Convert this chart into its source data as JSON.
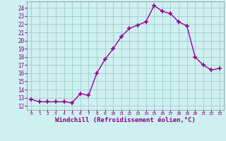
{
  "x": [
    0,
    1,
    2,
    3,
    4,
    5,
    6,
    7,
    8,
    9,
    10,
    11,
    12,
    13,
    14,
    15,
    16,
    17,
    18,
    19,
    20,
    21,
    22,
    23
  ],
  "y": [
    12.8,
    12.5,
    12.5,
    12.5,
    12.5,
    12.4,
    13.5,
    13.3,
    16.0,
    17.7,
    19.0,
    20.5,
    21.5,
    21.9,
    22.3,
    24.3,
    23.6,
    23.3,
    22.3,
    21.8,
    18.0,
    17.0,
    16.4,
    16.6
  ],
  "line_color": "#990099",
  "marker": "+",
  "marker_size": 5,
  "line_width": 1.0,
  "xlabel": "Windchill (Refroidissement éolien,°C)",
  "xlabel_fontsize": 6.5,
  "ylabel_ticks": [
    12,
    13,
    14,
    15,
    16,
    17,
    18,
    19,
    20,
    21,
    22,
    23,
    24
  ],
  "ylim": [
    11.5,
    24.8
  ],
  "xlim": [
    -0.5,
    23.5
  ],
  "bg_color": "#cff0f0",
  "grid_color": "#a0cccc",
  "tick_color": "#880088",
  "label_color": "#880088"
}
